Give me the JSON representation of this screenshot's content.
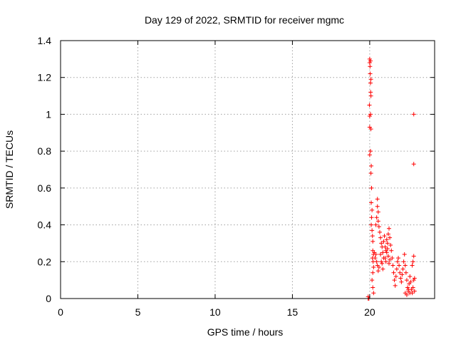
{
  "chart_data": {
    "type": "scatter",
    "title": "Day 129 of 2022, SRMTID for receiver mgmc",
    "xlabel": "GPS time / hours",
    "ylabel": "SRMTID / TECUs",
    "xlim": [
      0,
      24.2
    ],
    "ylim": [
      0,
      1.4
    ],
    "xticks": [
      0,
      5,
      10,
      15,
      20
    ],
    "yticks": [
      0,
      0.2,
      0.4,
      0.6,
      0.8,
      1,
      1.2,
      1.4
    ],
    "xtick_labels": [
      "0",
      "5",
      "10",
      "15",
      "20"
    ],
    "ytick_labels": [
      "0",
      "0.2",
      "0.4",
      "0.6",
      "0.8",
      "1",
      "1.2",
      "1.4"
    ],
    "grid": true,
    "marker": "plus",
    "color": "#ff0000",
    "series": [
      {
        "points": [
          [
            19.9,
            0.0
          ],
          [
            19.9,
            0.01
          ],
          [
            19.95,
            0.0
          ],
          [
            20.0,
            1.3
          ],
          [
            20.0,
            1.28
          ],
          [
            20.02,
            1.26
          ],
          [
            20.05,
            1.29
          ],
          [
            20.03,
            1.22
          ],
          [
            20.05,
            1.17
          ],
          [
            20.08,
            1.19
          ],
          [
            20.06,
            1.12
          ],
          [
            20.08,
            1.1
          ],
          [
            19.98,
            1.05
          ],
          [
            20.0,
            0.99
          ],
          [
            20.05,
            1.0
          ],
          [
            20.0,
            0.93
          ],
          [
            20.08,
            0.92
          ],
          [
            20.0,
            0.78
          ],
          [
            20.05,
            0.8
          ],
          [
            20.1,
            0.72
          ],
          [
            20.08,
            0.68
          ],
          [
            20.12,
            0.6
          ],
          [
            20.1,
            0.52
          ],
          [
            20.15,
            0.48
          ],
          [
            20.12,
            0.44
          ],
          [
            20.1,
            0.4
          ],
          [
            20.15,
            0.37
          ],
          [
            20.18,
            0.34
          ],
          [
            20.2,
            0.31
          ],
          [
            20.2,
            0.26
          ],
          [
            20.25,
            0.24
          ],
          [
            20.18,
            0.22
          ],
          [
            20.22,
            0.2
          ],
          [
            20.25,
            0.17
          ],
          [
            20.2,
            0.14
          ],
          [
            20.15,
            0.1
          ],
          [
            20.2,
            0.06
          ],
          [
            20.25,
            0.03
          ],
          [
            20.3,
            0.25
          ],
          [
            20.35,
            0.22
          ],
          [
            20.4,
            0.24
          ],
          [
            20.45,
            0.2
          ],
          [
            20.5,
            0.18
          ],
          [
            20.55,
            0.15
          ],
          [
            20.6,
            0.17
          ],
          [
            20.4,
            0.4
          ],
          [
            20.45,
            0.44
          ],
          [
            20.5,
            0.5
          ],
          [
            20.5,
            0.54
          ],
          [
            20.55,
            0.47
          ],
          [
            20.55,
            0.42
          ],
          [
            20.6,
            0.39
          ],
          [
            20.65,
            0.36
          ],
          [
            20.7,
            0.33
          ],
          [
            20.75,
            0.3
          ],
          [
            20.8,
            0.28
          ],
          [
            20.85,
            0.25
          ],
          [
            20.9,
            0.22
          ],
          [
            20.7,
            0.24
          ],
          [
            20.75,
            0.2
          ],
          [
            20.8,
            0.19
          ],
          [
            20.85,
            0.16
          ],
          [
            20.9,
            0.31
          ],
          [
            20.95,
            0.34
          ],
          [
            21.0,
            0.28
          ],
          [
            21.05,
            0.26
          ],
          [
            21.0,
            0.22
          ],
          [
            21.05,
            0.2
          ],
          [
            21.1,
            0.25
          ],
          [
            21.15,
            0.3
          ],
          [
            21.2,
            0.35
          ],
          [
            21.25,
            0.38
          ],
          [
            21.3,
            0.33
          ],
          [
            21.35,
            0.29
          ],
          [
            21.1,
            0.32
          ],
          [
            21.15,
            0.27
          ],
          [
            21.2,
            0.23
          ],
          [
            21.25,
            0.19
          ],
          [
            21.3,
            0.21
          ],
          [
            21.4,
            0.26
          ],
          [
            21.45,
            0.22
          ],
          [
            21.5,
            0.18
          ],
          [
            21.55,
            0.14
          ],
          [
            21.6,
            0.1
          ],
          [
            21.65,
            0.07
          ],
          [
            21.7,
            0.12
          ],
          [
            21.75,
            0.16
          ],
          [
            21.8,
            0.2
          ],
          [
            21.85,
            0.22
          ],
          [
            21.9,
            0.18
          ],
          [
            21.95,
            0.14
          ],
          [
            22.0,
            0.11
          ],
          [
            22.05,
            0.09
          ],
          [
            22.1,
            0.13
          ],
          [
            22.15,
            0.16
          ],
          [
            22.2,
            0.2
          ],
          [
            22.25,
            0.24
          ],
          [
            22.3,
            0.18
          ],
          [
            22.35,
            0.14
          ],
          [
            22.4,
            0.1
          ],
          [
            22.45,
            0.06
          ],
          [
            22.5,
            0.04
          ],
          [
            22.55,
            0.08
          ],
          [
            22.6,
            0.12
          ],
          [
            22.65,
            0.09
          ],
          [
            22.7,
            0.05
          ],
          [
            22.75,
            0.03
          ],
          [
            22.8,
            0.06
          ],
          [
            22.85,
            0.1
          ],
          [
            22.9,
            0.04
          ],
          [
            22.3,
            0.03
          ],
          [
            22.4,
            0.02
          ],
          [
            22.5,
            0.05
          ],
          [
            22.6,
            0.03
          ],
          [
            22.75,
            0.18
          ],
          [
            22.8,
            0.2
          ],
          [
            22.85,
            0.23
          ],
          [
            22.9,
            0.11
          ],
          [
            22.85,
            1.0
          ],
          [
            22.85,
            0.73
          ]
        ]
      }
    ]
  }
}
